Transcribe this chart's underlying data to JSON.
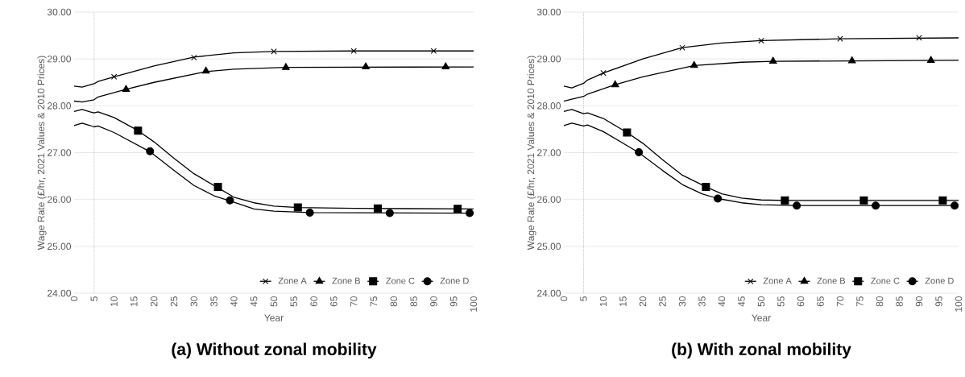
{
  "chart_data": [
    {
      "type": "line",
      "title": "(a)  Without zonal mobility",
      "xlabel": "Year",
      "ylabel": "Wage Rate (£/hr, 2021 Values & 2010 Prices)",
      "xlim": [
        0,
        100
      ],
      "ylim": [
        24,
        30
      ],
      "xticks": [
        0,
        5,
        10,
        15,
        20,
        25,
        30,
        35,
        40,
        45,
        50,
        55,
        60,
        65,
        70,
        75,
        80,
        85,
        90,
        95,
        100
      ],
      "yticks": [
        {
          "value": 24,
          "label": "24.00"
        },
        {
          "value": 25,
          "label": "25.00"
        },
        {
          "value": 26,
          "label": "26.00"
        },
        {
          "value": 27,
          "label": "27.00"
        },
        {
          "value": 28,
          "label": "28.00"
        },
        {
          "value": 29,
          "label": "29.00"
        },
        {
          "value": 30,
          "label": "30.00"
        }
      ],
      "grid": "y",
      "legend": "bottom right",
      "ref_lines": [
        {
          "axis": "x",
          "value": 5,
          "color": "#808080",
          "line_style": "dotted"
        }
      ],
      "series": [
        {
          "type": "line",
          "color": "#000000",
          "x": [
            0,
            2,
            5,
            6,
            10,
            20,
            30,
            40,
            50,
            70,
            100
          ],
          "values": [
            28.42,
            28.4,
            28.47,
            28.52,
            28.62,
            28.85,
            29.04,
            29.13,
            29.16,
            29.17,
            29.17
          ]
        },
        {
          "type": "line",
          "color": "#000000",
          "x": [
            0,
            2,
            5,
            6,
            13,
            20,
            33,
            40,
            53,
            100
          ],
          "values": [
            28.1,
            28.08,
            28.13,
            28.19,
            28.35,
            28.5,
            28.73,
            28.78,
            28.82,
            28.83
          ]
        },
        {
          "type": "line",
          "color": "#000000",
          "x": [
            0,
            2,
            4,
            5,
            6,
            10,
            16,
            20,
            25,
            30,
            36,
            40,
            45,
            50,
            56,
            70,
            100
          ],
          "values": [
            27.88,
            27.92,
            27.87,
            27.85,
            27.87,
            27.75,
            27.47,
            27.23,
            26.88,
            26.55,
            26.25,
            26.05,
            25.93,
            25.86,
            25.83,
            25.81,
            25.8
          ]
        },
        {
          "type": "line",
          "color": "#000000",
          "x": [
            0,
            2,
            4,
            5,
            6,
            10,
            19,
            25,
            30,
            35,
            39,
            45,
            50,
            59,
            100
          ],
          "values": [
            27.58,
            27.63,
            27.58,
            27.55,
            27.57,
            27.43,
            27.02,
            26.62,
            26.3,
            26.08,
            25.97,
            25.8,
            25.75,
            25.72,
            25.71
          ]
        },
        {
          "type": "scatter",
          "name": "Zone A",
          "color": "#000000",
          "marker": "cross",
          "x": [
            10,
            30,
            50,
            70,
            90
          ],
          "values": [
            28.62,
            29.03,
            29.16,
            29.17,
            29.17
          ]
        },
        {
          "type": "scatter",
          "name": "Zone B",
          "color": "#000000",
          "marker": "triangle",
          "x": [
            13,
            33,
            53,
            73,
            93
          ],
          "values": [
            28.35,
            28.74,
            28.82,
            28.83,
            28.83
          ]
        },
        {
          "type": "scatter",
          "name": "Zone C",
          "color": "#000000",
          "marker": "square",
          "x": [
            16,
            36,
            56,
            76,
            96
          ],
          "values": [
            27.47,
            26.27,
            25.83,
            25.81,
            25.8
          ]
        },
        {
          "type": "scatter",
          "name": "Zone D",
          "color": "#000000",
          "marker": "circle",
          "x": [
            19,
            39,
            59,
            79,
            99
          ],
          "values": [
            27.03,
            25.98,
            25.72,
            25.71,
            25.71
          ]
        }
      ]
    },
    {
      "type": "line",
      "title": "(b) With zonal mobility",
      "xlabel": "Year",
      "ylabel": "Wage Rate (£/hr, 2021 Values & 2010 Prices)",
      "xlim": [
        0,
        100
      ],
      "ylim": [
        24,
        30
      ],
      "xticks": [
        0,
        5,
        10,
        15,
        20,
        25,
        30,
        35,
        40,
        45,
        50,
        55,
        60,
        65,
        70,
        75,
        80,
        85,
        90,
        95,
        100
      ],
      "yticks": [
        {
          "value": 24,
          "label": "24.00"
        },
        {
          "value": 25,
          "label": "25.00"
        },
        {
          "value": 26,
          "label": "26.00"
        },
        {
          "value": 27,
          "label": "27.00"
        },
        {
          "value": 28,
          "label": "28.00"
        },
        {
          "value": 29,
          "label": "29.00"
        },
        {
          "value": 30,
          "label": "30.00"
        }
      ],
      "grid": "y",
      "legend": "bottom right",
      "ref_lines": [
        {
          "axis": "x",
          "value": 5,
          "color": "#808080",
          "line_style": "dotted"
        }
      ],
      "series": [
        {
          "type": "line",
          "color": "#000000",
          "x": [
            0,
            2,
            5,
            6,
            10,
            20,
            30,
            40,
            50,
            70,
            100
          ],
          "values": [
            28.42,
            28.38,
            28.48,
            28.55,
            28.7,
            29.0,
            29.24,
            29.34,
            29.39,
            29.43,
            29.45
          ]
        },
        {
          "type": "line",
          "color": "#000000",
          "x": [
            0,
            2,
            5,
            6,
            13,
            20,
            33,
            45,
            53,
            100
          ],
          "values": [
            28.1,
            28.14,
            28.2,
            28.25,
            28.45,
            28.62,
            28.86,
            28.93,
            28.95,
            28.97
          ]
        },
        {
          "type": "line",
          "color": "#000000",
          "x": [
            0,
            2,
            5,
            6,
            10,
            16,
            20,
            25,
            30,
            36,
            40,
            45,
            50,
            56,
            100
          ],
          "values": [
            27.88,
            27.92,
            27.83,
            27.85,
            27.73,
            27.43,
            27.2,
            26.85,
            26.52,
            26.27,
            26.12,
            26.03,
            25.99,
            25.98,
            25.98
          ]
        },
        {
          "type": "line",
          "color": "#000000",
          "x": [
            0,
            2,
            5,
            6,
            10,
            19,
            25,
            30,
            35,
            39,
            45,
            50,
            59,
            100
          ],
          "values": [
            27.58,
            27.63,
            27.57,
            27.59,
            27.45,
            27.0,
            26.62,
            26.32,
            26.12,
            26.02,
            25.93,
            25.89,
            25.87,
            25.87
          ]
        },
        {
          "type": "scatter",
          "name": "Zone A",
          "color": "#000000",
          "marker": "cross",
          "x": [
            10,
            30,
            50,
            70,
            90
          ],
          "values": [
            28.7,
            29.24,
            29.39,
            29.43,
            29.45
          ]
        },
        {
          "type": "scatter",
          "name": "Zone B",
          "color": "#000000",
          "marker": "triangle",
          "x": [
            13,
            33,
            53,
            73,
            93
          ],
          "values": [
            28.45,
            28.86,
            28.95,
            28.96,
            28.97
          ]
        },
        {
          "type": "scatter",
          "name": "Zone C",
          "color": "#000000",
          "marker": "square",
          "x": [
            16,
            36,
            56,
            76,
            96
          ],
          "values": [
            27.43,
            26.27,
            25.98,
            25.98,
            25.98
          ]
        },
        {
          "type": "scatter",
          "name": "Zone D",
          "color": "#000000",
          "marker": "circle",
          "x": [
            19,
            39,
            59,
            79,
            99
          ],
          "values": [
            27.01,
            26.02,
            25.87,
            25.87,
            25.87
          ]
        }
      ]
    }
  ]
}
